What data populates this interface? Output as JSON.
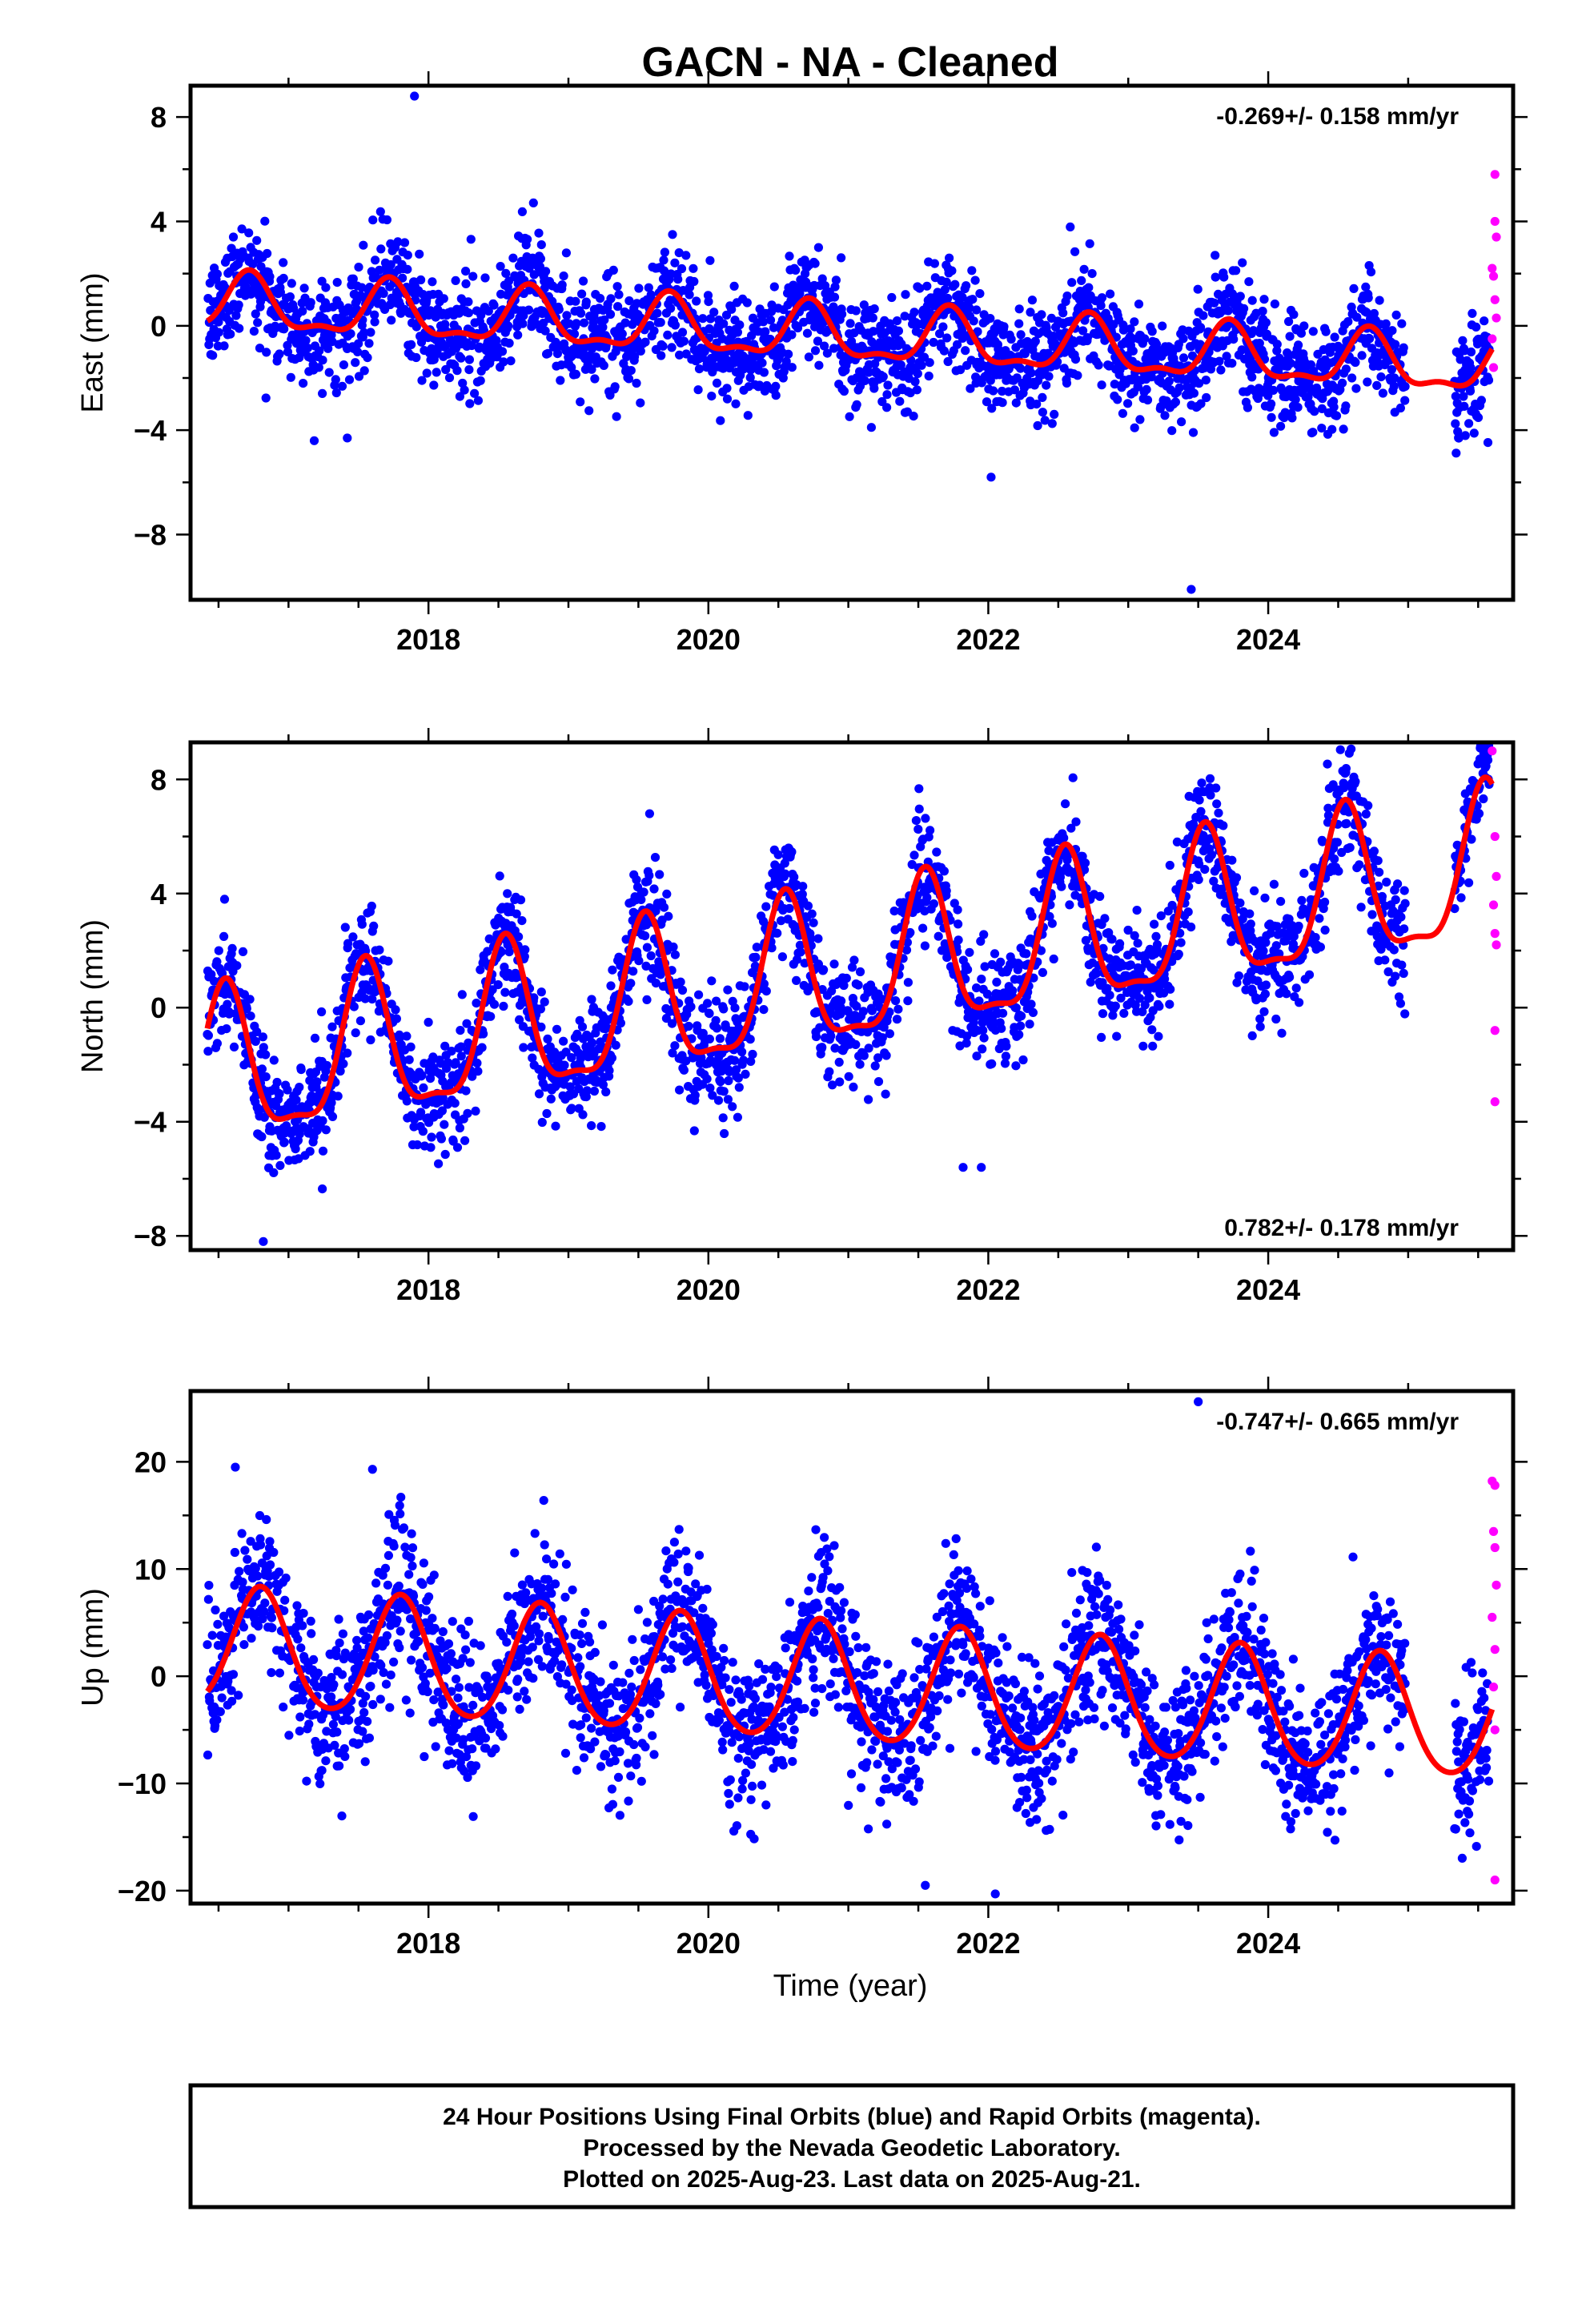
{
  "chart_data": {
    "type": "scatter",
    "title": "GACN  - NA - Cleaned",
    "xlabel": "Time (year)",
    "xlim": [
      2016.3,
      2025.75
    ],
    "xticks": [
      2018,
      2020,
      2022,
      2024
    ],
    "series_colors": {
      "final": "#0000ff",
      "rapid": "#ff00ff",
      "model": "#ff0000"
    },
    "panels": [
      {
        "component": "east",
        "ylabel": "East (mm)",
        "ylim": [
          -10.5,
          9.2
        ],
        "yticks": [
          8,
          4,
          0,
          -4,
          -8
        ],
        "yticklabels": [
          "8",
          "4",
          "0",
          "−4",
          "−8"
        ],
        "rate": "-0.269+/- 0.158 mm/yr",
        "rate_position": "top-right",
        "model": {
          "offset": 0.8,
          "rate": -0.269,
          "t0": 2016.5,
          "annual_amp": 1.0,
          "annual_peak": 2016.72,
          "semi_amp": 0.4,
          "semi_peak": 2016.72
        },
        "noise_sd": 1.05,
        "outliers": [
          {
            "x": 2017.9,
            "y": 8.8
          },
          {
            "x": 2023.45,
            "y": -10.1
          },
          {
            "x": 2022.02,
            "y": -5.8
          },
          {
            "x": 2017.42,
            "y": -4.3
          }
        ],
        "rapid_points": [
          {
            "x": 2025.62,
            "y": 5.8
          },
          {
            "x": 2025.62,
            "y": 4.0
          },
          {
            "x": 2025.63,
            "y": 3.4
          },
          {
            "x": 2025.6,
            "y": 2.2
          },
          {
            "x": 2025.61,
            "y": 1.9
          },
          {
            "x": 2025.62,
            "y": 1.0
          },
          {
            "x": 2025.63,
            "y": 0.3
          },
          {
            "x": 2025.6,
            "y": -0.5
          },
          {
            "x": 2025.61,
            "y": -1.6
          }
        ]
      },
      {
        "component": "north",
        "ylabel": "North (mm)",
        "ylim": [
          -8.5,
          9.3
        ],
        "yticks": [
          8,
          4,
          0,
          -4,
          -8
        ],
        "yticklabels": [
          "8",
          "4",
          "0",
          "−4",
          "−8"
        ],
        "rate": "0.782+/- 0.178 mm/yr",
        "rate_position": "bottom-right",
        "model": {
          "offset": -2.4,
          "rate": 0.782,
          "t0": 2016.5,
          "annual_amp": 2.6,
          "annual_peak": 2016.55,
          "semi_amp": 0.8,
          "semi_peak": 2016.55
        },
        "noise_sd": 1.0,
        "outliers": [
          {
            "x": 2019.58,
            "y": 6.8
          },
          {
            "x": 2016.82,
            "y": -8.2
          },
          {
            "x": 2021.82,
            "y": -5.6
          },
          {
            "x": 2021.95,
            "y": -5.6
          }
        ],
        "rapid_points": [
          {
            "x": 2025.6,
            "y": 9.0
          },
          {
            "x": 2025.62,
            "y": 6.0
          },
          {
            "x": 2025.63,
            "y": 4.6
          },
          {
            "x": 2025.61,
            "y": 3.6
          },
          {
            "x": 2025.62,
            "y": 2.6
          },
          {
            "x": 2025.63,
            "y": 2.2
          },
          {
            "x": 2025.62,
            "y": -0.8
          },
          {
            "x": 2025.62,
            "y": -3.3
          }
        ]
      },
      {
        "component": "up",
        "ylabel": "Up (mm)",
        "ylim": [
          -21.2,
          26.6
        ],
        "yticks": [
          20,
          10,
          0,
          -10,
          -20
        ],
        "yticklabels": [
          "20",
          "10",
          "0",
          "−10",
          "−20"
        ],
        "rate": "-0.747+/- 0.665 mm/yr",
        "rate_position": "top-right",
        "model": {
          "offset": 2.5,
          "rate": -0.747,
          "t0": 2016.5,
          "annual_amp": 5.5,
          "annual_peak": 2016.8,
          "semi_amp": 0.6,
          "semi_peak": 2016.8
        },
        "noise_sd": 3.5,
        "outliers": [
          {
            "x": 2023.5,
            "y": 25.6
          },
          {
            "x": 2016.62,
            "y": 19.5
          },
          {
            "x": 2017.6,
            "y": 19.3
          },
          {
            "x": 2021.55,
            "y": -19.5
          },
          {
            "x": 2022.05,
            "y": -20.3
          }
        ],
        "rapid_points": [
          {
            "x": 2025.6,
            "y": 18.2
          },
          {
            "x": 2025.62,
            "y": 17.8
          },
          {
            "x": 2025.61,
            "y": 13.5
          },
          {
            "x": 2025.62,
            "y": 12.0
          },
          {
            "x": 2025.63,
            "y": 8.5
          },
          {
            "x": 2025.6,
            "y": 5.5
          },
          {
            "x": 2025.62,
            "y": 2.5
          },
          {
            "x": 2025.61,
            "y": -1.0
          },
          {
            "x": 2025.62,
            "y": -5.0
          },
          {
            "x": 2025.62,
            "y": -19.0
          }
        ]
      }
    ]
  },
  "footer": {
    "line1": "24 Hour Positions Using Final Orbits (blue) and Rapid Orbits (magenta).",
    "line2": "Processed by the Nevada Geodetic Laboratory.",
    "line3": "Plotted on 2025-Aug-23. Last data on 2025-Aug-21."
  }
}
